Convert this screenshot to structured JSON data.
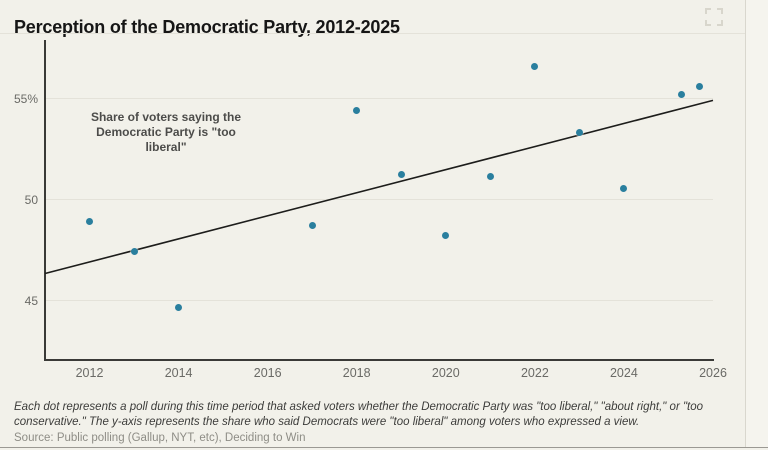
{
  "header": {
    "title": "Perception of the Democratic Party, 2012-2025"
  },
  "chart_data": {
    "type": "scatter",
    "title": "Perception of the Democratic Party, 2012-2025",
    "annotation": "Share of voters saying the\nDemocratic Party is \"too\nliberal\"",
    "xlabel": "",
    "ylabel": "",
    "xlim": [
      2011,
      2026
    ],
    "ylim": [
      42,
      57.9
    ],
    "x_ticks": [
      2012,
      2014,
      2016,
      2018,
      2020,
      2022,
      2024,
      2026
    ],
    "y_ticks": [
      {
        "value": 45,
        "label": "45"
      },
      {
        "value": 50,
        "label": "50"
      },
      {
        "value": 55,
        "label": "55%"
      }
    ],
    "grid": "horizontal",
    "legend": "none",
    "point_color": "#2a7f9e",
    "trend_color": "#1d1d1b",
    "background_color": "#f2f1ea",
    "points": [
      {
        "x": 2012.0,
        "y": 48.9
      },
      {
        "x": 2013.0,
        "y": 47.4
      },
      {
        "x": 2014.0,
        "y": 44.6
      },
      {
        "x": 2017.0,
        "y": 48.7
      },
      {
        "x": 2018.0,
        "y": 54.4
      },
      {
        "x": 2019.0,
        "y": 51.2
      },
      {
        "x": 2020.0,
        "y": 48.2
      },
      {
        "x": 2021.0,
        "y": 51.1
      },
      {
        "x": 2022.0,
        "y": 56.6
      },
      {
        "x": 2023.0,
        "y": 53.3
      },
      {
        "x": 2024.0,
        "y": 50.5
      },
      {
        "x": 2025.3,
        "y": 55.2
      },
      {
        "x": 2025.7,
        "y": 55.6
      }
    ],
    "trend": {
      "x": [
        2011,
        2026
      ],
      "y": [
        46.3,
        54.9
      ]
    }
  },
  "footer": {
    "note": "Each dot represents a poll during this time period that asked voters whether the Democratic Party was \"too liberal,\" \"about right,\" or \"too conservative.\" The y-axis represents the share who said Democrats were \"too liberal\" among voters who expressed a view.",
    "source": "Source: Public polling (Gallup, NYT, etc), Deciding to Win"
  }
}
